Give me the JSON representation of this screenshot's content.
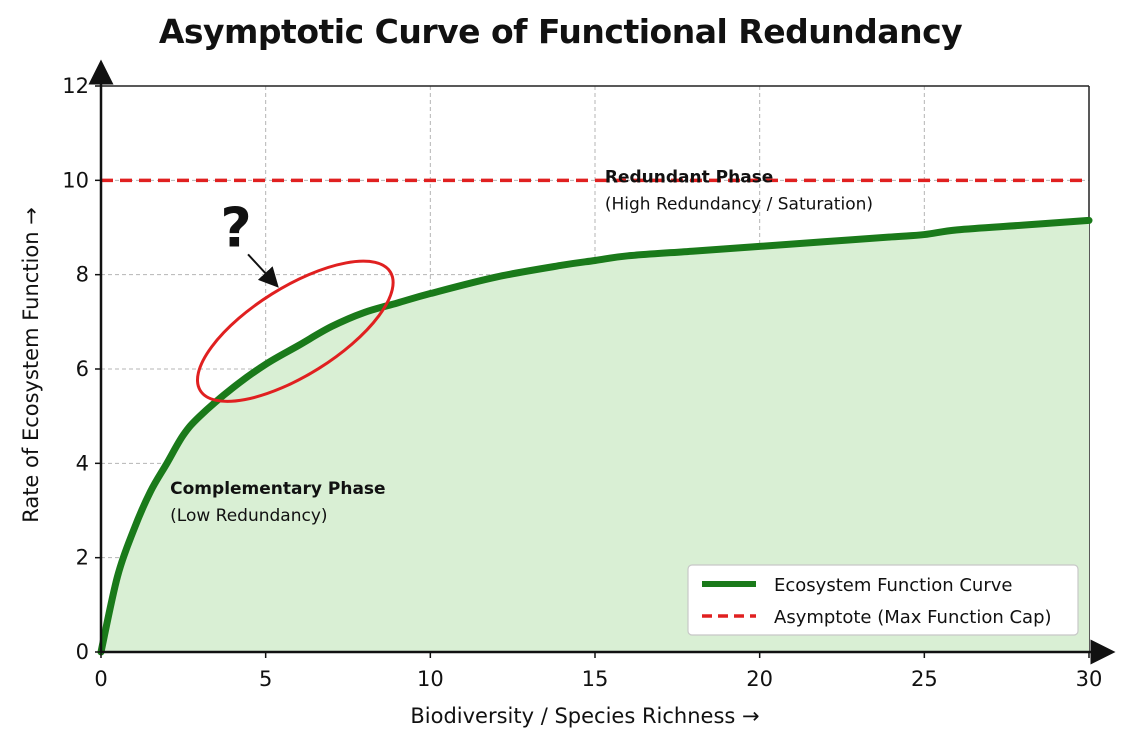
{
  "chart_data": {
    "type": "line",
    "title": "Asymptotic Curve of Functional Redundancy",
    "xlabel": "Biodiversity / Species Richness →",
    "ylabel": "Rate of Ecosystem Function →",
    "xlim": [
      0,
      30
    ],
    "ylim": [
      0,
      12
    ],
    "xticks": [
      0,
      5,
      10,
      15,
      20,
      25,
      30
    ],
    "yticks": [
      0,
      2,
      4,
      6,
      8,
      10,
      12
    ],
    "grid": true,
    "legend_position": "bottom-right",
    "series": [
      {
        "name": "Ecosystem Function Curve",
        "color": "#1a7a1a",
        "fill": "#d9efd4",
        "x": [
          0,
          0.5,
          1,
          1.5,
          2,
          2.5,
          3,
          4,
          5,
          6,
          7,
          8,
          9,
          10,
          12,
          14,
          15,
          16,
          18,
          20,
          22,
          24,
          25,
          26,
          28,
          30
        ],
        "y": [
          0,
          1.6,
          2.6,
          3.4,
          4.0,
          4.6,
          5.0,
          5.6,
          6.1,
          6.5,
          6.9,
          7.2,
          7.4,
          7.6,
          7.95,
          8.2,
          8.3,
          8.4,
          8.5,
          8.6,
          8.7,
          8.8,
          8.85,
          8.95,
          9.05,
          9.15
        ]
      },
      {
        "name": "Asymptote (Max Function Cap)",
        "color": "#e02020",
        "dashed": true,
        "x": [
          0,
          30
        ],
        "y": [
          10,
          10
        ]
      }
    ],
    "annotations": [
      {
        "id": "complementary",
        "title": "Complementary Phase",
        "subtitle": "(Low Redundancy)",
        "x": 2.1,
        "y": 3.35
      },
      {
        "id": "redundant",
        "title": "Redundant Phase",
        "subtitle": "(High Redundancy / Saturation)",
        "x": 15.3,
        "y": 9.95
      },
      {
        "id": "question",
        "text": "?",
        "x": 4.1,
        "y": 8.6
      }
    ],
    "highlight_ellipse": {
      "color": "#e02020",
      "center": [
        5.9,
        6.8
      ],
      "note": "circled transition region"
    }
  }
}
